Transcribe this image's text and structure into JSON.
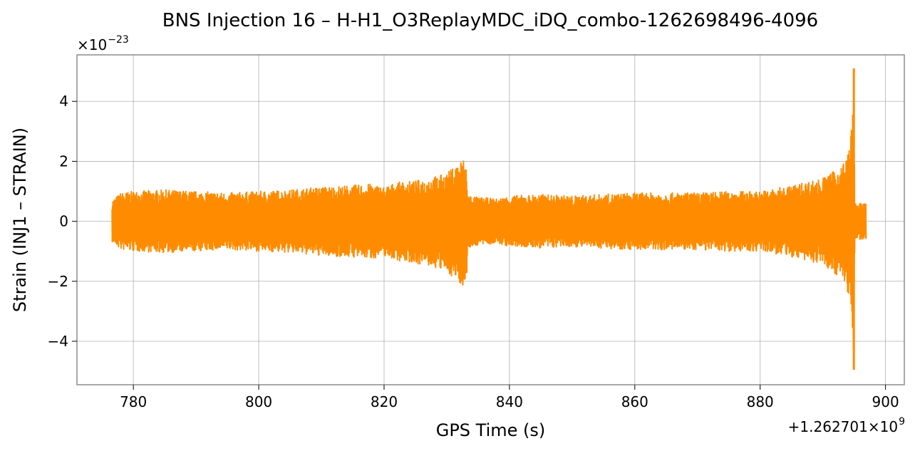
{
  "chart_data": {
    "type": "line",
    "title": "BNS Injection 16 – H-H1_O3ReplayMDC_iDQ_combo-1262698496-4096",
    "xlabel": "GPS Time (s)",
    "ylabel": "Strain (INJ1 – STRAIN)",
    "x_offset_label": "+1.262701×10",
    "x_offset_exp": "9",
    "y_multiplier_label": "×10",
    "y_multiplier_exp": "−23",
    "xlim": [
      771,
      903
    ],
    "ylim": [
      -5.45,
      5.55
    ],
    "xticks": [
      780,
      800,
      820,
      840,
      860,
      880,
      900
    ],
    "xtick_labels": [
      "780",
      "800",
      "820",
      "840",
      "860",
      "880",
      "900"
    ],
    "yticks": [
      -4,
      -2,
      0,
      2,
      4
    ],
    "ytick_labels": [
      "−4",
      "−2",
      "0",
      "2",
      "4"
    ],
    "grid": true,
    "color": "#ff8c00",
    "x_range": [
      776.6,
      896.9
    ],
    "envelope": {
      "x": [
        776.6,
        778,
        780,
        785,
        790,
        795,
        800,
        805,
        810,
        815,
        818,
        820,
        822,
        825,
        828,
        830,
        831.5,
        832.5,
        833.2,
        833.3,
        835,
        838,
        840,
        845,
        850,
        855,
        860,
        865,
        870,
        875,
        880,
        885,
        888,
        890,
        892,
        893.5,
        894.3,
        894.7,
        894.95,
        895.1,
        895.3,
        896,
        896.9
      ],
      "upper": [
        0.7,
        0.95,
        1.0,
        1.05,
        1.0,
        0.95,
        1.0,
        1.05,
        1.15,
        1.2,
        1.25,
        1.15,
        1.3,
        1.35,
        1.5,
        1.6,
        1.9,
        2.1,
        2.0,
        0.9,
        0.8,
        0.75,
        0.85,
        0.9,
        0.85,
        0.9,
        0.95,
        0.95,
        0.95,
        1.0,
        1.0,
        1.2,
        1.35,
        1.45,
        1.7,
        2.0,
        2.6,
        3.4,
        5.1,
        0.6,
        0.6,
        0.6,
        0.6
      ],
      "lower": [
        -0.7,
        -0.95,
        -1.0,
        -1.05,
        -1.0,
        -0.95,
        -1.0,
        -1.05,
        -1.15,
        -1.2,
        -1.25,
        -1.15,
        -1.3,
        -1.4,
        -1.55,
        -1.7,
        -1.95,
        -2.15,
        -2.0,
        -0.9,
        -0.8,
        -0.75,
        -0.85,
        -0.9,
        -0.85,
        -0.9,
        -0.95,
        -0.95,
        -0.95,
        -1.0,
        -1.0,
        -1.2,
        -1.35,
        -1.45,
        -1.75,
        -2.05,
        -2.7,
        -3.6,
        -4.95,
        -0.6,
        -0.6,
        -0.6,
        -0.6
      ]
    }
  }
}
